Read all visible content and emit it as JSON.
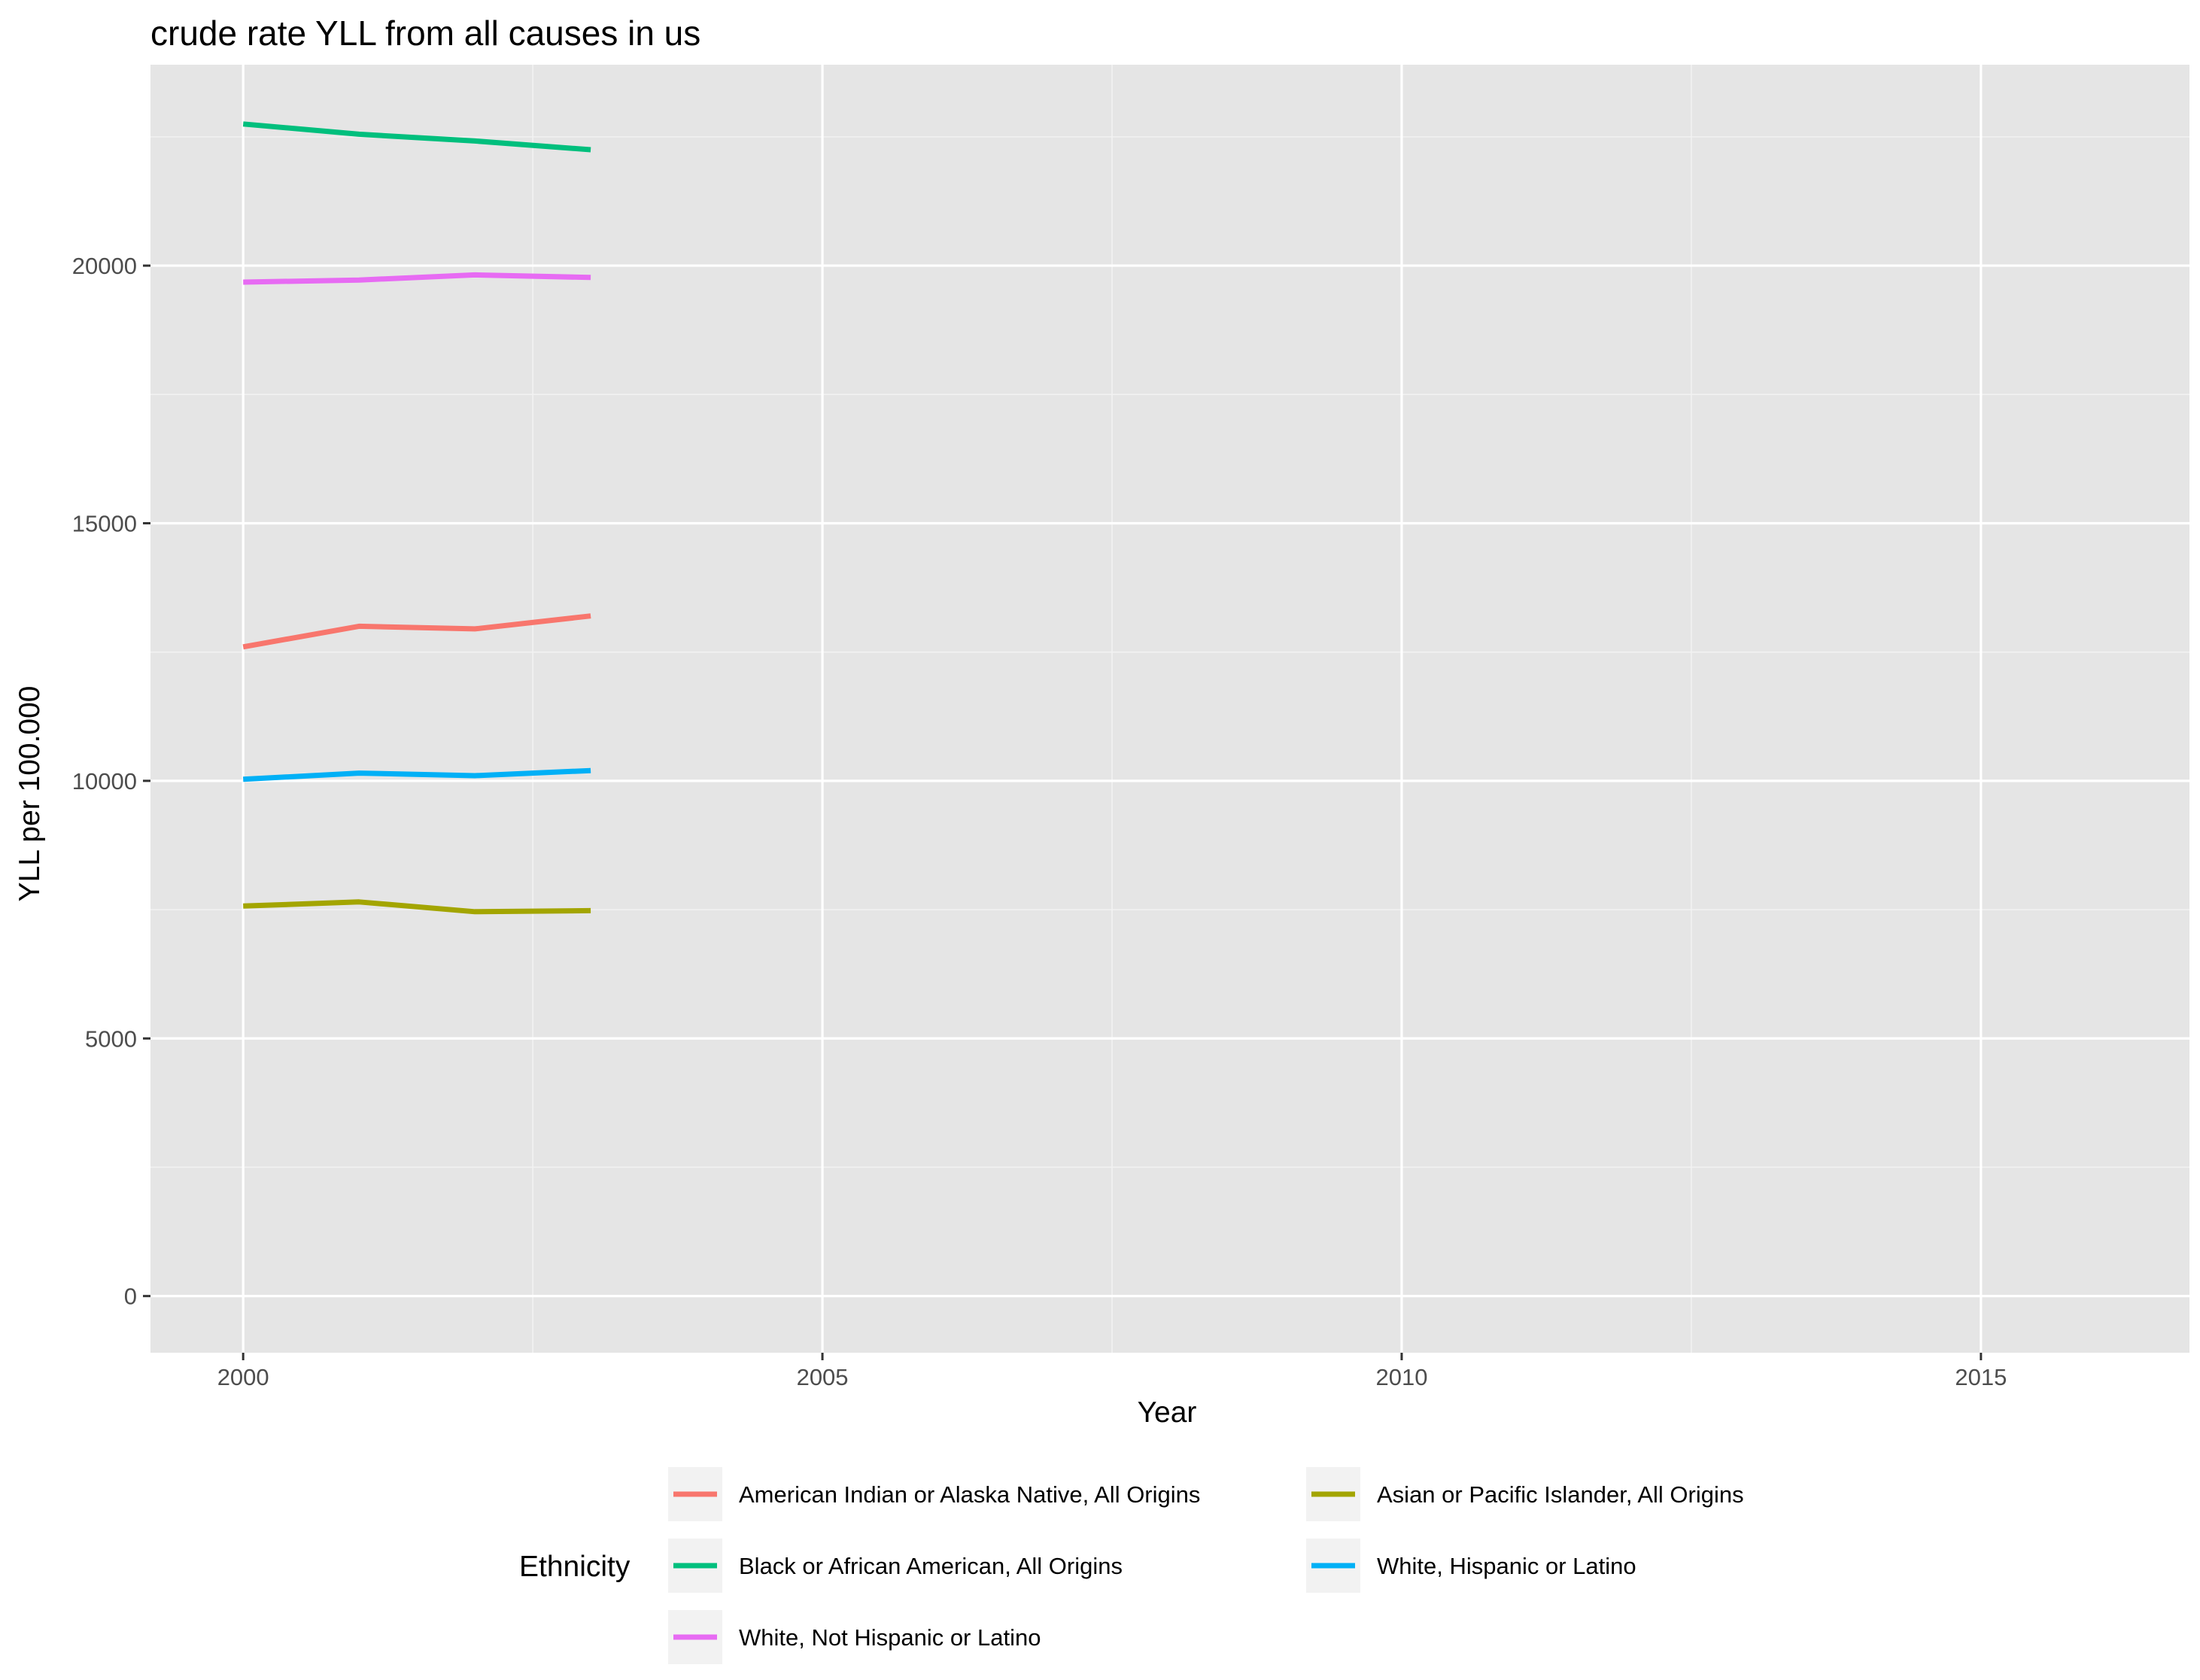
{
  "chart_data": {
    "type": "line",
    "title": "crude rate YLL from all causes in us",
    "xlabel": "Year",
    "ylabel": "YLL per 100.000",
    "xlim": [
      1999.2,
      2016.8
    ],
    "ylim": [
      -1100,
      23900
    ],
    "x_ticks": [
      2000,
      2005,
      2010,
      2015
    ],
    "x_tick_labels": [
      "2000",
      "2005",
      "2010",
      "2015"
    ],
    "y_ticks": [
      0,
      5000,
      10000,
      15000,
      20000
    ],
    "y_tick_labels": [
      "0",
      "5000",
      "10000",
      "15000",
      "20000"
    ],
    "grid": true,
    "legend_position": "bottom",
    "legend_title": "Ethnicity",
    "series": [
      {
        "name": "American Indian or Alaska Native, All Origins",
        "color": "#F8766D",
        "x": [
          2000,
          2001,
          2002,
          2003
        ],
        "y": [
          12600,
          13000,
          12950,
          13200
        ]
      },
      {
        "name": "Asian or Pacific Islander, All Origins",
        "color": "#A3A500",
        "x": [
          2000,
          2001,
          2002,
          2003
        ],
        "y": [
          7570,
          7650,
          7460,
          7480
        ]
      },
      {
        "name": "Black or African American, All Origins",
        "color": "#00BF7D",
        "x": [
          2000,
          2001,
          2002,
          2003
        ],
        "y": [
          22750,
          22550,
          22420,
          22250
        ]
      },
      {
        "name": "White, Hispanic or Latino",
        "color": "#00B0F6",
        "x": [
          2000,
          2001,
          2002,
          2003
        ],
        "y": [
          10030,
          10150,
          10100,
          10200
        ]
      },
      {
        "name": "White, Not Hispanic or Latino",
        "color": "#E76BF3",
        "x": [
          2000,
          2001,
          2002,
          2003
        ],
        "y": [
          19680,
          19720,
          19820,
          19770
        ]
      }
    ],
    "colors": {
      "panel_background": "#E5E5E5",
      "grid_major": "#FFFFFF",
      "grid_minor": "#F2F2F2",
      "tick": "#333333",
      "legend_key_background": "#F2F2F2"
    }
  }
}
